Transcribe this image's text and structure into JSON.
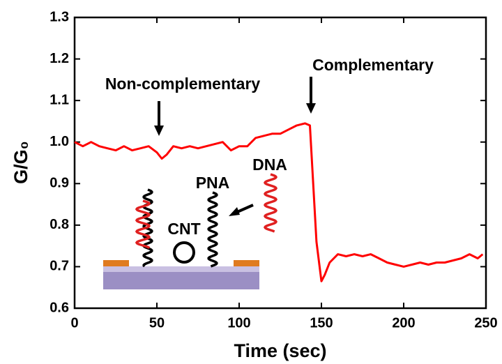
{
  "chart_data": {
    "type": "line",
    "xlabel": "Time (sec)",
    "ylabel": "G/G₀",
    "x": [
      0,
      5,
      10,
      15,
      20,
      25,
      30,
      35,
      40,
      45,
      50,
      53,
      56,
      60,
      65,
      70,
      75,
      80,
      85,
      90,
      95,
      100,
      105,
      110,
      115,
      120,
      125,
      130,
      135,
      140,
      143,
      145,
      147,
      150,
      152,
      155,
      160,
      165,
      170,
      175,
      180,
      185,
      190,
      195,
      200,
      205,
      210,
      215,
      220,
      225,
      230,
      235,
      240,
      245,
      248
    ],
    "series": [
      {
        "name": "G/G₀",
        "color": "#ff0000",
        "values": [
          1.0,
          0.99,
          1.0,
          0.99,
          0.985,
          0.98,
          0.99,
          0.98,
          0.985,
          0.99,
          0.975,
          0.96,
          0.97,
          0.99,
          0.985,
          0.99,
          0.985,
          0.99,
          0.995,
          1.0,
          0.98,
          0.99,
          0.99,
          1.01,
          1.015,
          1.02,
          1.02,
          1.03,
          1.04,
          1.045,
          1.04,
          0.9,
          0.76,
          0.665,
          0.68,
          0.71,
          0.73,
          0.725,
          0.73,
          0.725,
          0.73,
          0.72,
          0.71,
          0.705,
          0.7,
          0.705,
          0.71,
          0.705,
          0.71,
          0.71,
          0.715,
          0.72,
          0.73,
          0.72,
          0.73
        ]
      }
    ],
    "xlim": [
      0,
      250
    ],
    "xticks": [
      0,
      50,
      100,
      150,
      200,
      250
    ],
    "ylim": [
      0.6,
      1.3
    ],
    "yticks": [
      0.6,
      0.7,
      0.8,
      0.9,
      {
        "value": 1.0,
        "label": "1.0"
      },
      1.1,
      1.2,
      1.3
    ],
    "annotations": [
      "Non-complementary",
      "Complementary"
    ],
    "inset_labels": [
      "DNA",
      "PNA",
      "CNT"
    ]
  }
}
